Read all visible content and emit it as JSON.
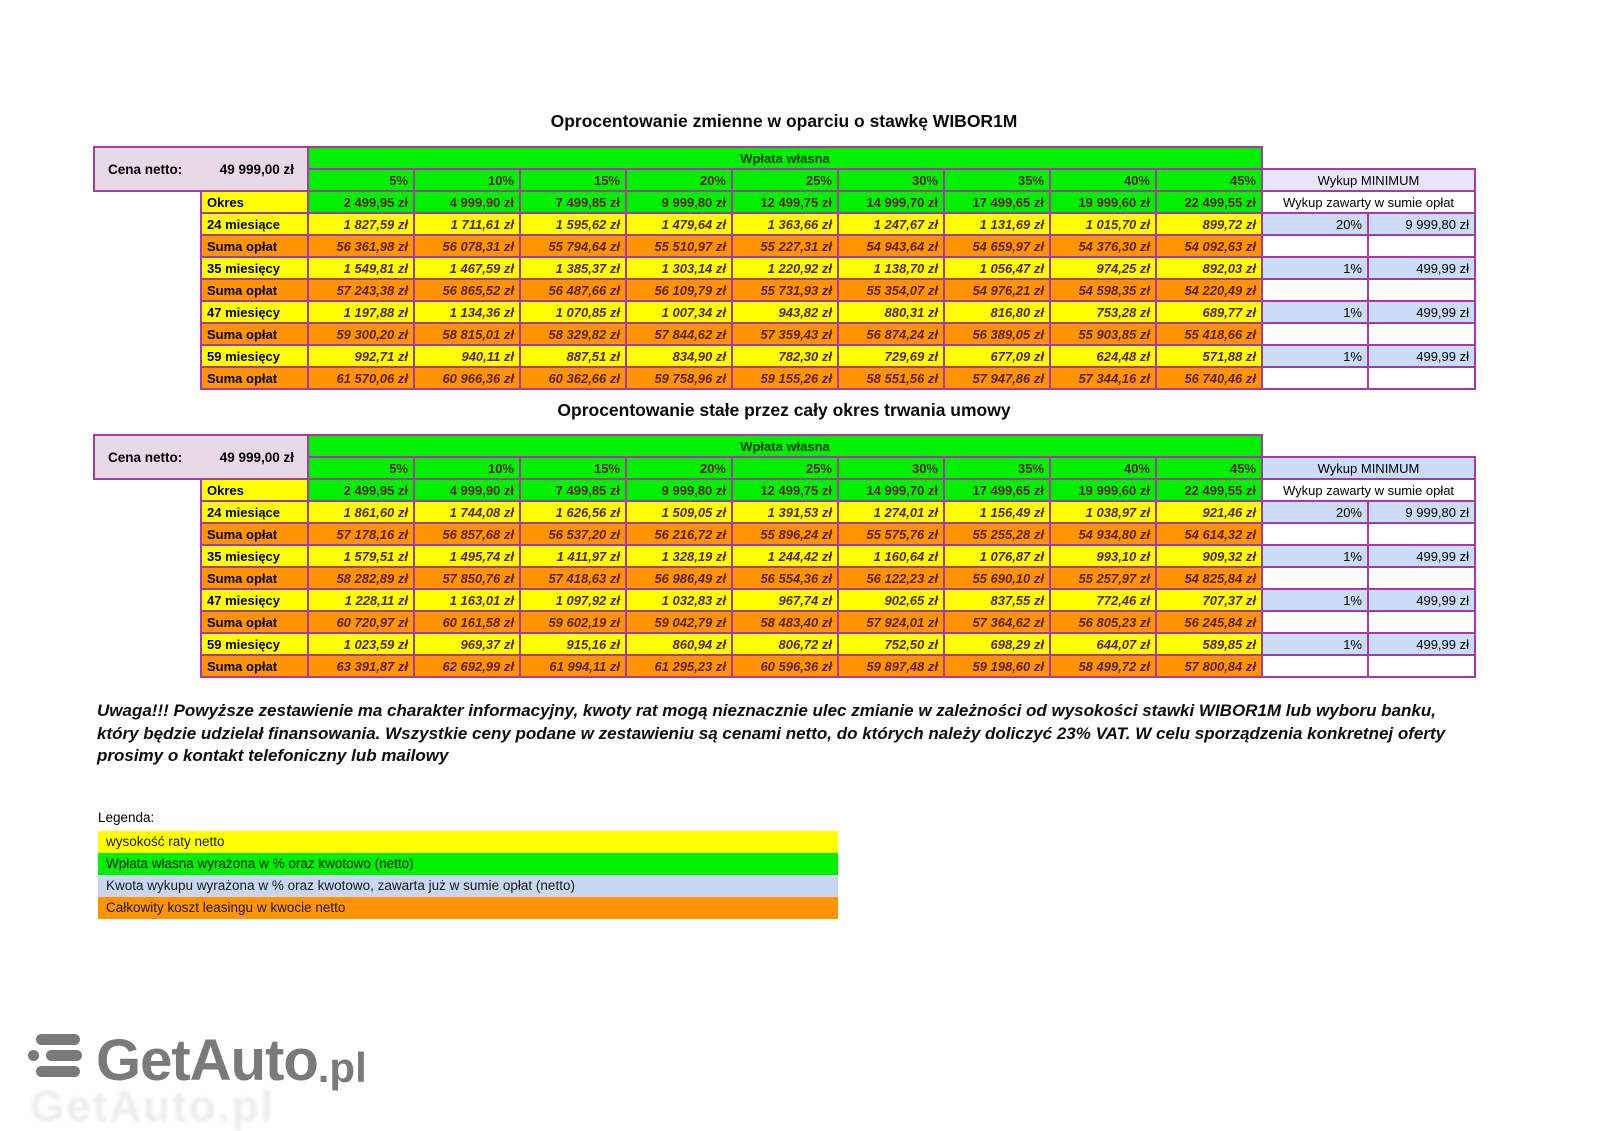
{
  "tables": [
    {
      "title": "Oprocentowanie zmienne w oparciu o stawkę WIBOR1M",
      "cena_netto_label": "Cena netto:",
      "cena_netto_value": "49 999,00 zł",
      "wplata_wlasna_label": "Wpłata własna",
      "okres_label": "Okres",
      "wykup_header": "Wykup MINIMUM",
      "wykup_subheader": "Wykup zawarty w sumie opłat",
      "wykup_header_bg": "#E6E6F8",
      "percent_headers": [
        "5%",
        "10%",
        "15%",
        "20%",
        "25%",
        "30%",
        "35%",
        "40%",
        "45%"
      ],
      "downpayment_amounts": [
        "2 499,95 zł",
        "4 999,90 zł",
        "7 499,85 zł",
        "9 999,80 zł",
        "12 499,75 zł",
        "14 999,70 zł",
        "17 499,65 zł",
        "19 999,60 zł",
        "22 499,55 zł"
      ],
      "rows": [
        {
          "label": "24 miesiące",
          "kind": "rata",
          "values": [
            "1 827,59 zł",
            "1 711,61 zł",
            "1 595,62 zł",
            "1 479,64 zł",
            "1 363,66 zł",
            "1 247,67 zł",
            "1 131,69 zł",
            "1 015,70 zł",
            "899,72 zł"
          ],
          "wykup_pct": "20%",
          "wykup_amount": "9 999,80 zł"
        },
        {
          "label": "Suma opłat",
          "kind": "suma",
          "values": [
            "56 361,98 zł",
            "56 078,31 zł",
            "55 794,64 zł",
            "55 510,97 zł",
            "55 227,31 zł",
            "54 943,64 zł",
            "54 659,97 zł",
            "54 376,30 zł",
            "54 092,63 zł"
          ],
          "wykup_pct": "",
          "wykup_amount": ""
        },
        {
          "label": "35 miesięcy",
          "kind": "rata",
          "values": [
            "1 549,81 zł",
            "1 467,59 zł",
            "1 385,37 zł",
            "1 303,14 zł",
            "1 220,92 zł",
            "1 138,70 zł",
            "1 056,47 zł",
            "974,25 zł",
            "892,03 zł"
          ],
          "wykup_pct": "1%",
          "wykup_amount": "499,99 zł"
        },
        {
          "label": "Suma opłat",
          "kind": "suma",
          "values": [
            "57 243,38 zł",
            "56 865,52 zł",
            "56 487,66 zł",
            "56 109,79 zł",
            "55 731,93 zł",
            "55 354,07 zł",
            "54 976,21 zł",
            "54 598,35 zł",
            "54 220,49 zł"
          ],
          "wykup_pct": "",
          "wykup_amount": ""
        },
        {
          "label": "47 miesięcy",
          "kind": "rata",
          "values": [
            "1 197,88 zł",
            "1 134,36 zł",
            "1 070,85 zł",
            "1 007,34 zł",
            "943,82 zł",
            "880,31 zł",
            "816,80 zł",
            "753,28 zł",
            "689,77 zł"
          ],
          "wykup_pct": "1%",
          "wykup_amount": "499,99 zł"
        },
        {
          "label": "Suma opłat",
          "kind": "suma",
          "values": [
            "59 300,20 zł",
            "58 815,01 zł",
            "58 329,82 zł",
            "57 844,62 zł",
            "57 359,43 zł",
            "56 874,24 zł",
            "56 389,05 zł",
            "55 903,85 zł",
            "55 418,66 zł"
          ],
          "wykup_pct": "",
          "wykup_amount": ""
        },
        {
          "label": "59 miesięcy",
          "kind": "rata",
          "values": [
            "992,71 zł",
            "940,11 zł",
            "887,51 zł",
            "834,90 zł",
            "782,30 zł",
            "729,69 zł",
            "677,09 zł",
            "624,48 zł",
            "571,88 zł"
          ],
          "wykup_pct": "1%",
          "wykup_amount": "499,99 zł"
        },
        {
          "label": "Suma opłat",
          "kind": "suma",
          "values": [
            "61 570,06 zł",
            "60 966,36 zł",
            "60 362,66 zł",
            "59 758,96 zł",
            "59 155,26 zł",
            "58 551,56 zł",
            "57 947,86 zł",
            "57 344,16 zł",
            "56 740,46 zł"
          ],
          "wykup_pct": "",
          "wykup_amount": ""
        }
      ]
    },
    {
      "title": "Oprocentowanie stałe przez cały okres trwania umowy",
      "cena_netto_label": "Cena netto:",
      "cena_netto_value": "49 999,00 zł",
      "wplata_wlasna_label": "Wpłata własna",
      "okres_label": "Okres",
      "wykup_header": "Wykup MINIMUM",
      "wykup_subheader": "Wykup zawarty w sumie opłat",
      "wykup_header_bg": "#CBDCF6",
      "percent_headers": [
        "5%",
        "10%",
        "15%",
        "20%",
        "25%",
        "30%",
        "35%",
        "40%",
        "45%"
      ],
      "downpayment_amounts": [
        "2 499,95 zł",
        "4 999,90 zł",
        "7 499,85 zł",
        "9 999,80 zł",
        "12 499,75 zł",
        "14 999,70 zł",
        "17 499,65 zł",
        "19 999,60 zł",
        "22 499,55 zł"
      ],
      "rows": [
        {
          "label": "24 miesiące",
          "kind": "rata",
          "values": [
            "1 861,60 zł",
            "1 744,08 zł",
            "1 626,56 zł",
            "1 509,05 zł",
            "1 391,53 zł",
            "1 274,01 zł",
            "1 156,49 zł",
            "1 038,97 zł",
            "921,46 zł"
          ],
          "wykup_pct": "20%",
          "wykup_amount": "9 999,80 zł"
        },
        {
          "label": "Suma opłat",
          "kind": "suma",
          "values": [
            "57 178,16 zł",
            "56 857,68 zł",
            "56 537,20 zł",
            "56 216,72 zł",
            "55 896,24 zł",
            "55 575,76 zł",
            "55 255,28 zł",
            "54 934,80 zł",
            "54 614,32 zł"
          ],
          "wykup_pct": "",
          "wykup_amount": ""
        },
        {
          "label": "35 miesięcy",
          "kind": "rata",
          "values": [
            "1 579,51 zł",
            "1 495,74 zł",
            "1 411,97 zł",
            "1 328,19 zł",
            "1 244,42 zł",
            "1 160,64 zł",
            "1 076,87 zł",
            "993,10 zł",
            "909,32 zł"
          ],
          "wykup_pct": "1%",
          "wykup_amount": "499,99 zł"
        },
        {
          "label": "Suma opłat",
          "kind": "suma",
          "values": [
            "58 282,89 zł",
            "57 850,76 zł",
            "57 418,63 zł",
            "56 986,49 zł",
            "56 554,36 zł",
            "56 122,23 zł",
            "55 690,10 zł",
            "55 257,97 zł",
            "54 825,84 zł"
          ],
          "wykup_pct": "",
          "wykup_amount": ""
        },
        {
          "label": "47 miesięcy",
          "kind": "rata",
          "values": [
            "1 228,11 zł",
            "1 163,01 zł",
            "1 097,92 zł",
            "1 032,83 zł",
            "967,74 zł",
            "902,65 zł",
            "837,55 zł",
            "772,46 zł",
            "707,37 zł"
          ],
          "wykup_pct": "1%",
          "wykup_amount": "499,99 zł"
        },
        {
          "label": "Suma opłat",
          "kind": "suma",
          "values": [
            "60 720,97 zł",
            "60 161,58 zł",
            "59 602,19 zł",
            "59 042,79 zł",
            "58 483,40 zł",
            "57 924,01 zł",
            "57 364,62 zł",
            "56 805,23 zł",
            "56 245,84 zł"
          ],
          "wykup_pct": "",
          "wykup_amount": ""
        },
        {
          "label": "59 miesięcy",
          "kind": "rata",
          "values": [
            "1 023,59 zł",
            "969,37 zł",
            "915,16 zł",
            "860,94 zł",
            "806,72 zł",
            "752,50 zł",
            "698,29 zł",
            "644,07 zł",
            "589,85 zł"
          ],
          "wykup_pct": "1%",
          "wykup_amount": "499,99 zł"
        },
        {
          "label": "Suma opłat",
          "kind": "suma",
          "values": [
            "63 391,87 zł",
            "62 692,99 zł",
            "61 994,11 zł",
            "61 295,23 zł",
            "60 596,36 zł",
            "59 897,48 zł",
            "59 198,60 zł",
            "58 499,72 zł",
            "57 800,84 zł"
          ],
          "wykup_pct": "",
          "wykup_amount": ""
        }
      ]
    }
  ],
  "note": "Uwaga!!! Powyższe zestawienie ma charakter informacyjny, kwoty rat mogą nieznacznie ulec zmianie w zależności od wysokości stawki WIBOR1M lub wyboru banku, który będzie udzielał finansowania. Wszystkie ceny podane w zestawieniu są cenami netto, do których należy doliczyć 23% VAT. W celu sporządzenia konkretnej oferty prosimy o kontakt telefoniczny lub mailowy",
  "legend": {
    "title": "Legenda:",
    "items": [
      {
        "label": "wysokość raty netto",
        "color": "#FFFF00"
      },
      {
        "label": "Wpłata własna wyrażona w % oraz kwotowo (netto)",
        "color": "#00F000"
      },
      {
        "label": "Kwota wykupu wyrażona w % oraz kwotowo, zawarta już w sumie opłat (netto)",
        "color": "#C9D7F1"
      },
      {
        "label": "Całkowity koszt leasingu w kwocie netto",
        "color": "#FF9300"
      }
    ]
  },
  "logo": {
    "text": "GetAuto",
    "suffix": ".pl"
  },
  "colors": {
    "grid_border": "#A83AA8",
    "green_cell": "#00F000",
    "yellow_cell": "#FFFF00",
    "orange_cell": "#FF9300",
    "blue_cell": "#CBDCF6",
    "lavender_cell": "#E8D9E8",
    "value_text": "#5e2300",
    "logo_gray": "#7a7a7a"
  }
}
